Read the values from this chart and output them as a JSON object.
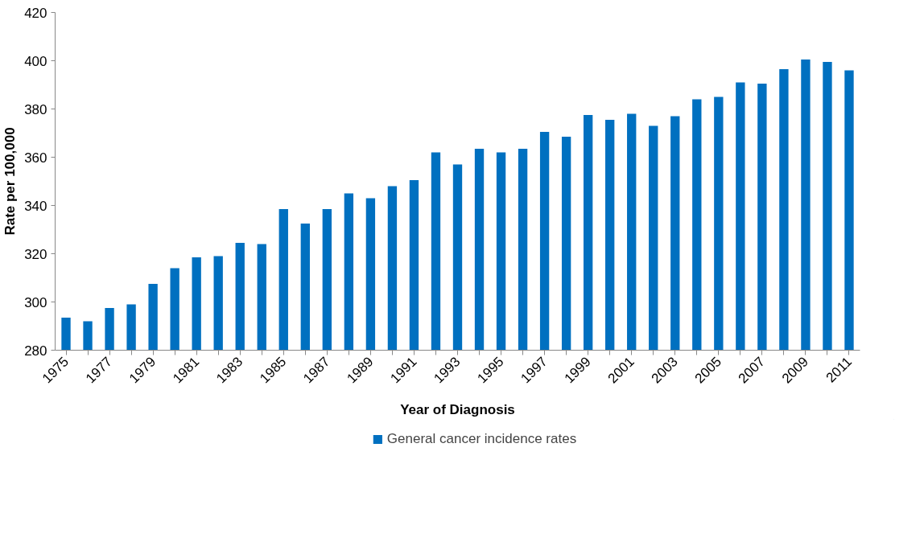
{
  "chart_data": {
    "type": "bar",
    "xlabel": "Year of Diagnosis",
    "ylabel": "Rate per 100,000",
    "categories": [
      "1975",
      null,
      "1977",
      null,
      "1979",
      null,
      "1981",
      null,
      "1983",
      null,
      "1985",
      null,
      "1987",
      null,
      "1989",
      null,
      "1991",
      null,
      "1993",
      null,
      "1995",
      null,
      "1997",
      null,
      "1999",
      null,
      "2001",
      null,
      "2003",
      null,
      "2005",
      null,
      "2007",
      null,
      "2009",
      null,
      "2011"
    ],
    "series": [
      {
        "name": "General cancer incidence rates",
        "color": "#0070c0",
        "values": [
          293.5,
          292,
          297.5,
          299,
          307.5,
          314,
          318.5,
          319,
          324.5,
          324,
          338.5,
          332.5,
          338.5,
          345,
          343,
          348,
          350.5,
          362,
          357,
          363.5,
          362,
          363.5,
          370.5,
          368.5,
          377.5,
          375.5,
          378,
          373,
          377,
          384,
          385,
          391,
          390.5,
          396.5,
          400.5,
          399.5,
          396
        ]
      }
    ],
    "ylim": [
      280,
      420
    ],
    "yticks": [
      280,
      300,
      320,
      340,
      360,
      380,
      400,
      420
    ],
    "grid": false,
    "legend": "bottom"
  }
}
